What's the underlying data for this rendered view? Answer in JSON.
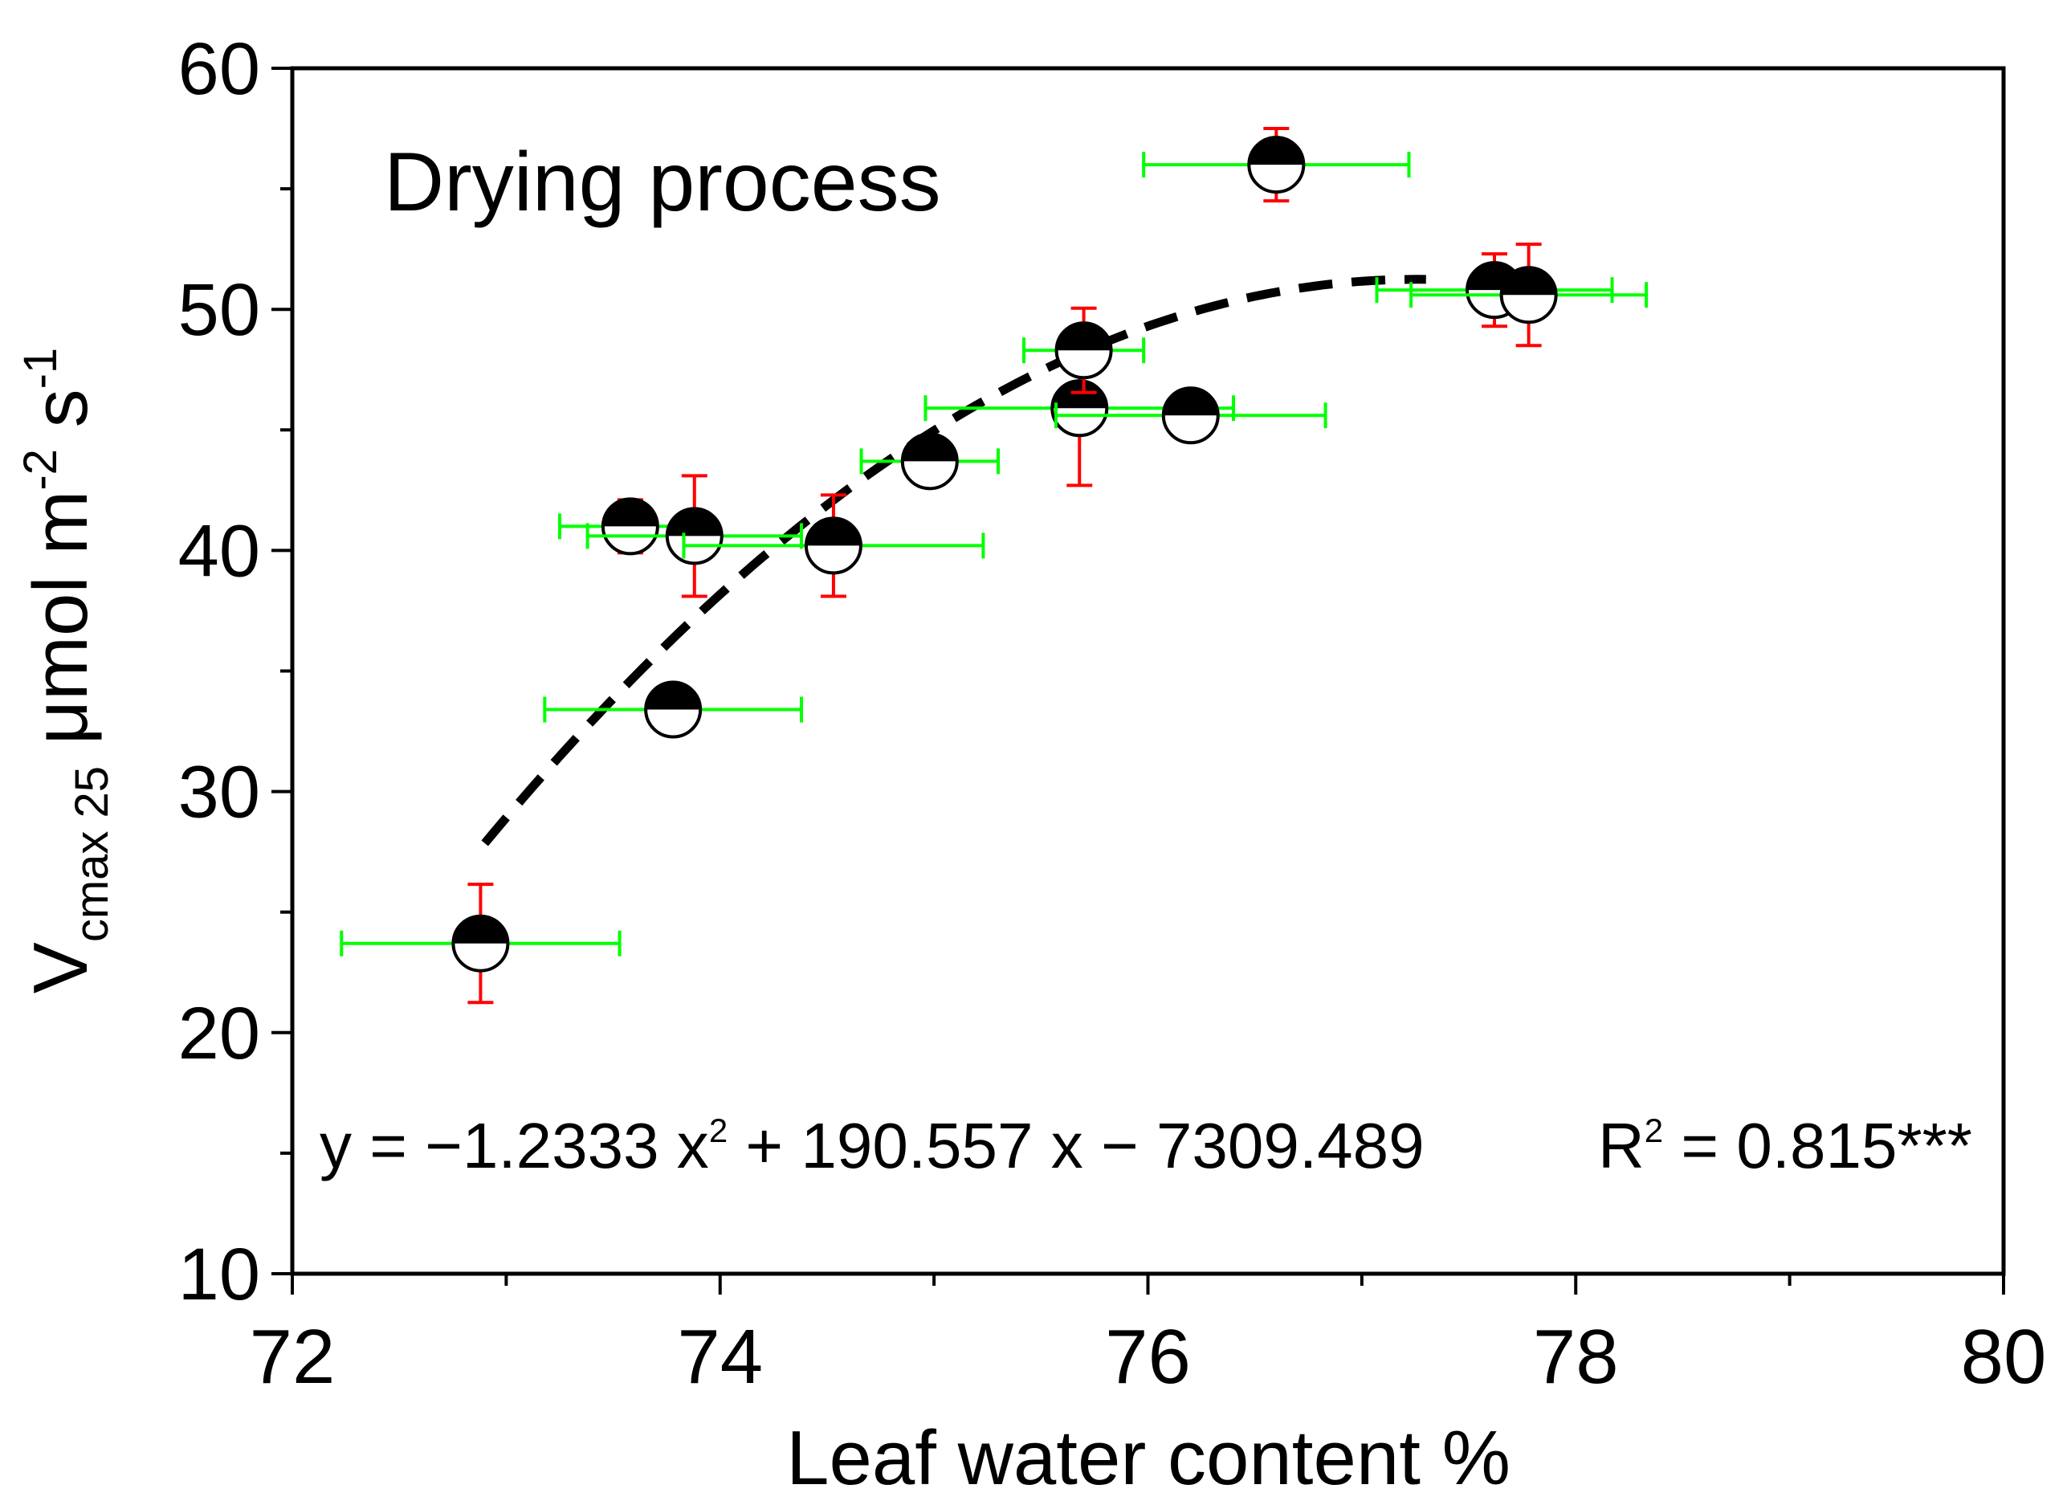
{
  "chart_data": {
    "type": "scatter",
    "annotation": "Drying process",
    "xlabel": "Leaf water  content %",
    "ylabel": {
      "main": "V",
      "sub": "cmax 25",
      "unit_a": " μmol m",
      "sup_a": "-2",
      "unit_b": " s",
      "sup_b": "-1"
    },
    "xlim": [
      72,
      80
    ],
    "ylim": [
      10,
      60
    ],
    "x_ticks": [
      72,
      74,
      76,
      78,
      80
    ],
    "y_ticks": [
      10,
      20,
      30,
      40,
      50,
      60
    ],
    "grid": false,
    "legend": "none",
    "equation": {
      "lhs": "y = −1.2333 x",
      "sup": "2",
      "rhs": " + 190.557 x − 7309.489",
      "r2_label": "R",
      "r2_sup": "2",
      "r2_value": " = 0.815***"
    },
    "fit": {
      "type": "quadratic",
      "a": -1.2333,
      "b": 190.557,
      "c": -7309.489,
      "x_range": [
        72.9,
        77.3
      ]
    },
    "marker": "half-filled-circle",
    "colors": {
      "y_error": "#ff0000",
      "x_error": "#00ff00",
      "marker_fill": "#000000",
      "fit_line": "#000000"
    },
    "points": [
      {
        "x": 72.88,
        "y": 23.7,
        "xerr": 0.65,
        "yerr": 2.45
      },
      {
        "x": 73.58,
        "y": 41.0,
        "xerr": 0.33,
        "yerr": 1.1
      },
      {
        "x": 73.78,
        "y": 33.4,
        "xerr": 0.6,
        "yerr": 0.8
      },
      {
        "x": 73.88,
        "y": 40.6,
        "xerr": 0.5,
        "yerr": 2.5
      },
      {
        "x": 74.53,
        "y": 40.2,
        "xerr": 0.7,
        "yerr": 2.1
      },
      {
        "x": 74.98,
        "y": 43.7,
        "xerr": 0.32,
        "yerr": 0.9
      },
      {
        "x": 75.68,
        "y": 45.9,
        "xerr": 0.72,
        "yerr": 3.2
      },
      {
        "x": 75.7,
        "y": 48.3,
        "xerr": 0.28,
        "yerr": 1.75
      },
      {
        "x": 76.2,
        "y": 45.6,
        "xerr": 0.63,
        "yerr": 1.0
      },
      {
        "x": 76.6,
        "y": 56.0,
        "xerr": 0.62,
        "yerr": 1.5
      },
      {
        "x": 77.62,
        "y": 50.8,
        "xerr": 0.55,
        "yerr": 1.5
      },
      {
        "x": 77.78,
        "y": 50.6,
        "xerr": 0.55,
        "yerr": 2.1
      }
    ]
  }
}
